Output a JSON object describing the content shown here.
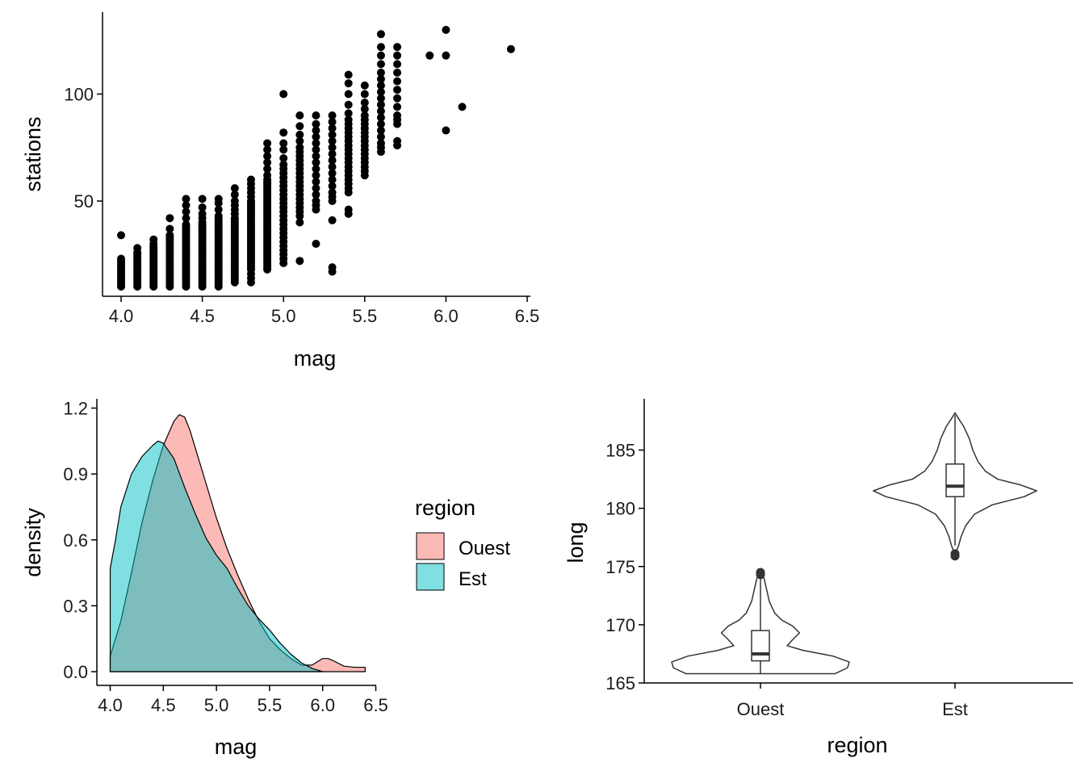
{
  "chart_data": [
    {
      "type": "scatter",
      "xlabel": "mag",
      "ylabel": "stations",
      "xlim": [
        3.9,
        6.5
      ],
      "ylim": [
        10,
        132
      ],
      "xticks": [
        "4.0",
        "4.5",
        "5.0",
        "5.5",
        "6.0",
        "6.5"
      ],
      "yticks": [
        "50",
        "100"
      ],
      "point_color": "#000000",
      "columns": [
        {
          "mag": 4.0,
          "stations": [
            10,
            11,
            12,
            13,
            14,
            15,
            16,
            17,
            18,
            19,
            20,
            21,
            22,
            23,
            34
          ]
        },
        {
          "mag": 4.1,
          "stations": [
            10,
            11,
            12,
            13,
            14,
            15,
            16,
            17,
            18,
            19,
            20,
            21,
            22,
            23,
            24,
            25,
            26,
            28
          ]
        },
        {
          "mag": 4.2,
          "stations": [
            10,
            11,
            12,
            13,
            14,
            15,
            16,
            17,
            18,
            19,
            20,
            21,
            22,
            23,
            24,
            25,
            26,
            27,
            28,
            29,
            30,
            32
          ]
        },
        {
          "mag": 4.3,
          "stations": [
            10,
            11,
            12,
            13,
            14,
            15,
            16,
            17,
            18,
            19,
            20,
            21,
            22,
            23,
            24,
            25,
            26,
            27,
            28,
            29,
            30,
            31,
            32,
            33,
            34,
            37,
            42
          ]
        },
        {
          "mag": 4.4,
          "stations": [
            10,
            11,
            12,
            13,
            14,
            15,
            16,
            17,
            18,
            19,
            20,
            21,
            22,
            23,
            24,
            25,
            26,
            27,
            28,
            29,
            30,
            31,
            32,
            33,
            34,
            35,
            36,
            37,
            38,
            39,
            42,
            45,
            48,
            51
          ]
        },
        {
          "mag": 4.5,
          "stations": [
            10,
            11,
            12,
            13,
            14,
            15,
            16,
            17,
            18,
            19,
            20,
            21,
            22,
            23,
            24,
            25,
            26,
            27,
            28,
            29,
            30,
            31,
            32,
            33,
            34,
            35,
            36,
            37,
            38,
            39,
            40,
            42,
            44,
            47,
            51
          ]
        },
        {
          "mag": 4.6,
          "stations": [
            10,
            11,
            12,
            13,
            14,
            15,
            16,
            17,
            18,
            19,
            20,
            21,
            22,
            23,
            24,
            25,
            26,
            27,
            28,
            29,
            30,
            31,
            32,
            33,
            34,
            35,
            36,
            37,
            38,
            39,
            40,
            41,
            42,
            43,
            46,
            49,
            51
          ]
        },
        {
          "mag": 4.7,
          "stations": [
            12,
            13,
            14,
            15,
            16,
            17,
            18,
            19,
            20,
            21,
            22,
            23,
            24,
            25,
            26,
            27,
            28,
            29,
            30,
            31,
            32,
            33,
            34,
            35,
            36,
            37,
            38,
            39,
            40,
            41,
            42,
            44,
            46,
            48,
            50,
            53,
            56
          ]
        },
        {
          "mag": 4.8,
          "stations": [
            12,
            14,
            16,
            18,
            19,
            20,
            21,
            22,
            23,
            24,
            25,
            26,
            27,
            28,
            29,
            30,
            31,
            32,
            33,
            34,
            35,
            36,
            37,
            38,
            39,
            40,
            41,
            42,
            43,
            44,
            45,
            46,
            47,
            48,
            49,
            50,
            52,
            54,
            56,
            58,
            60
          ]
        },
        {
          "mag": 4.9,
          "stations": [
            18,
            19,
            20,
            21,
            22,
            23,
            24,
            25,
            26,
            27,
            28,
            29,
            30,
            31,
            32,
            33,
            34,
            35,
            36,
            37,
            38,
            39,
            40,
            41,
            42,
            43,
            44,
            45,
            46,
            47,
            48,
            49,
            50,
            51,
            52,
            53,
            54,
            55,
            56,
            57,
            58,
            59,
            60,
            62,
            65,
            68,
            71,
            74,
            77
          ]
        },
        {
          "mag": 5.0,
          "stations": [
            21,
            23,
            25,
            27,
            29,
            31,
            33,
            35,
            37,
            39,
            41,
            43,
            45,
            47,
            49,
            51,
            53,
            55,
            57,
            59,
            61,
            63,
            65,
            67,
            70,
            74,
            77,
            82,
            100
          ]
        },
        {
          "mag": 5.1,
          "stations": [
            22,
            40,
            43,
            45,
            47,
            49,
            51,
            53,
            55,
            57,
            59,
            61,
            63,
            65,
            67,
            69,
            71,
            73,
            75,
            78,
            81,
            85,
            90
          ]
        },
        {
          "mag": 5.2,
          "stations": [
            30,
            46,
            48,
            50,
            53,
            56,
            59,
            62,
            65,
            68,
            71,
            74,
            77,
            80,
            83,
            86,
            90
          ]
        },
        {
          "mag": 5.3,
          "stations": [
            17,
            19,
            41,
            50,
            52,
            54,
            57,
            60,
            63,
            66,
            69,
            72,
            75,
            78,
            81,
            84,
            87,
            90
          ]
        },
        {
          "mag": 5.4,
          "stations": [
            44,
            46,
            54,
            56,
            58,
            60,
            62,
            64,
            66,
            68,
            70,
            72,
            74,
            76,
            78,
            80,
            82,
            84,
            86,
            88,
            91,
            95,
            100,
            105,
            109
          ]
        },
        {
          "mag": 5.5,
          "stations": [
            62,
            64,
            66,
            68,
            70,
            72,
            74,
            76,
            78,
            80,
            82,
            84,
            86,
            88,
            90,
            93,
            96,
            100,
            104
          ]
        },
        {
          "mag": 5.6,
          "stations": [
            73,
            75,
            77,
            80,
            83,
            86,
            89,
            92,
            95,
            98,
            101,
            104,
            107,
            110,
            114,
            118,
            122,
            128
          ]
        },
        {
          "mag": 5.7,
          "stations": [
            76,
            78,
            86,
            88,
            90,
            94,
            98,
            102,
            106,
            110,
            114,
            118,
            122
          ]
        },
        {
          "mag": 5.9,
          "stations": [
            118
          ]
        },
        {
          "mag": 6.0,
          "stations": [
            83,
            118,
            130
          ]
        },
        {
          "mag": 6.1,
          "stations": [
            94
          ]
        },
        {
          "mag": 6.4,
          "stations": [
            121
          ]
        }
      ]
    },
    {
      "type": "area",
      "xlabel": "mag",
      "ylabel": "density",
      "xlim": [
        3.9,
        6.5
      ],
      "ylim": [
        -0.05,
        1.22
      ],
      "xticks": [
        "4.0",
        "4.5",
        "5.0",
        "5.5",
        "6.0",
        "6.5"
      ],
      "yticks": [
        "0.0",
        "0.3",
        "0.6",
        "0.9",
        "1.2"
      ],
      "legend": {
        "title": "region",
        "position": "right"
      },
      "series": [
        {
          "name": "Ouest",
          "color": "#F8766D",
          "x": [
            4.0,
            4.1,
            4.2,
            4.3,
            4.4,
            4.5,
            4.6,
            4.65,
            4.7,
            4.75,
            4.8,
            4.9,
            5.0,
            5.1,
            5.2,
            5.3,
            5.4,
            5.5,
            5.6,
            5.7,
            5.8,
            5.9,
            6.0,
            6.05,
            6.1,
            6.2,
            6.3,
            6.4
          ],
          "y": [
            0.07,
            0.23,
            0.45,
            0.68,
            0.87,
            1.03,
            1.14,
            1.17,
            1.16,
            1.1,
            1.02,
            0.86,
            0.7,
            0.56,
            0.44,
            0.33,
            0.23,
            0.15,
            0.1,
            0.06,
            0.03,
            0.03,
            0.06,
            0.06,
            0.05,
            0.025,
            0.02,
            0.02
          ]
        },
        {
          "name": "Est",
          "color": "#00BFC4",
          "x": [
            4.0,
            4.05,
            4.1,
            4.2,
            4.3,
            4.4,
            4.45,
            4.5,
            4.6,
            4.7,
            4.8,
            4.9,
            5.0,
            5.1,
            5.2,
            5.3,
            5.4,
            5.5,
            5.6,
            5.7,
            5.8,
            5.9,
            6.0
          ],
          "y": [
            0.47,
            0.6,
            0.75,
            0.9,
            0.98,
            1.03,
            1.05,
            1.04,
            0.97,
            0.84,
            0.72,
            0.61,
            0.53,
            0.47,
            0.38,
            0.3,
            0.24,
            0.19,
            0.13,
            0.08,
            0.04,
            0.015,
            0.0
          ]
        }
      ]
    },
    {
      "type": "violin",
      "xlabel": "region",
      "ylabel": "long",
      "ylim": [
        164.8,
        189.5
      ],
      "categories": [
        "Ouest",
        "Est"
      ],
      "yticks": [
        "165",
        "170",
        "175",
        "180",
        "185"
      ],
      "violins": [
        {
          "category": "Ouest",
          "profile": [
            [
              165.8,
              0.84
            ],
            [
              166.3,
              0.98
            ],
            [
              166.8,
              1.0
            ],
            [
              167.3,
              0.82
            ],
            [
              167.8,
              0.48
            ],
            [
              168.2,
              0.3
            ],
            [
              168.7,
              0.36
            ],
            [
              169.3,
              0.44
            ],
            [
              169.9,
              0.36
            ],
            [
              170.4,
              0.24
            ],
            [
              171.0,
              0.16
            ],
            [
              172.0,
              0.1
            ],
            [
              173.0,
              0.07
            ],
            [
              174.0,
              0.04
            ],
            [
              174.5,
              0.0
            ]
          ],
          "box": {
            "q1": 166.9,
            "median": 167.5,
            "q3": 169.5,
            "whisker_low": 165.8,
            "whisker_high": 174.0
          },
          "outliers": [
            174.3,
            174.5
          ]
        },
        {
          "category": "Est",
          "profile": [
            [
              176.0,
              0.0
            ],
            [
              176.8,
              0.04
            ],
            [
              177.6,
              0.07
            ],
            [
              178.5,
              0.12
            ],
            [
              179.5,
              0.22
            ],
            [
              180.3,
              0.42
            ],
            [
              181.0,
              0.78
            ],
            [
              181.5,
              0.92
            ],
            [
              182.0,
              0.74
            ],
            [
              182.5,
              0.48
            ],
            [
              183.2,
              0.34
            ],
            [
              184.0,
              0.26
            ],
            [
              185.0,
              0.2
            ],
            [
              186.0,
              0.16
            ],
            [
              187.0,
              0.1
            ],
            [
              187.7,
              0.04
            ],
            [
              188.2,
              0.0
            ]
          ],
          "box": {
            "q1": 181.0,
            "median": 181.9,
            "q3": 183.8,
            "whisker_low": 176.8,
            "whisker_high": 188.0
          },
          "outliers": [
            175.9,
            176.1
          ]
        }
      ]
    }
  ]
}
